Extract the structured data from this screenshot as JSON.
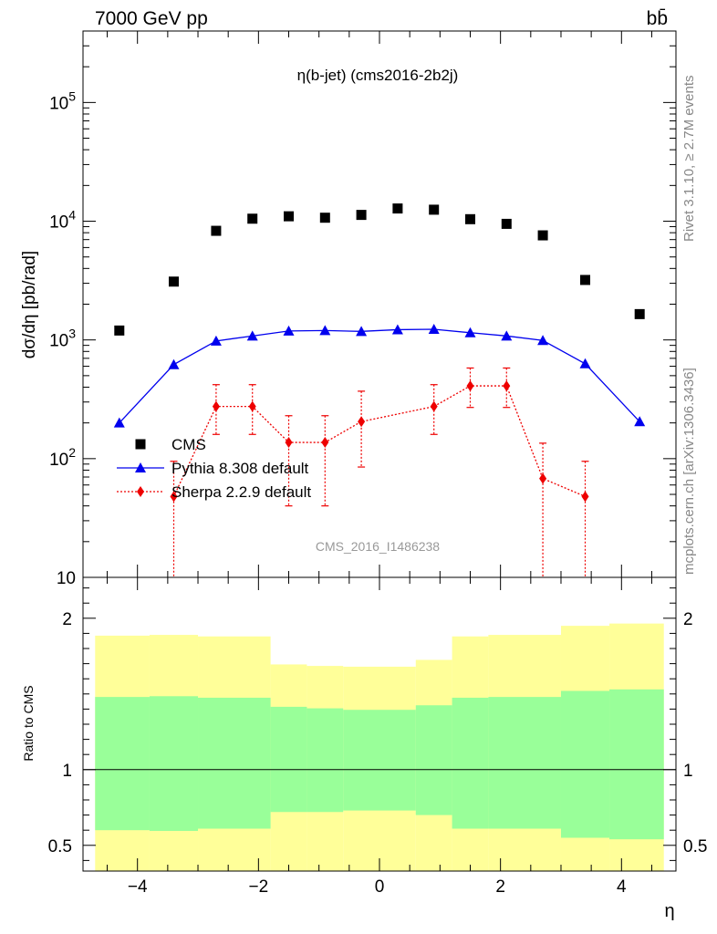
{
  "header": {
    "left": "7000 GeV pp",
    "right": "bb̄",
    "side_top": "Rivet 3.1.10, ≥ 2.7M events",
    "side_bottom": "mcplots.cern.ch [arXiv:1306.3436]"
  },
  "chart_data": [
    {
      "type": "scatter",
      "title": "η(b-jet) (cms2016-2b2j)",
      "ylabel": "dσ/dη [pb/rad]",
      "watermark": "CMS_2016_I1486238",
      "yscale": "log",
      "xlim": [
        -4.9,
        4.9
      ],
      "ylim": [
        10,
        400000
      ],
      "y_ticks": [
        {
          "v": 10,
          "b": "10",
          "e": ""
        },
        {
          "v": 100,
          "b": "10",
          "e": "2"
        },
        {
          "v": 1000,
          "b": "10",
          "e": "3"
        },
        {
          "v": 10000,
          "b": "10",
          "e": "4"
        },
        {
          "v": 100000,
          "b": "10",
          "e": "5"
        }
      ],
      "legend_position": "center-left",
      "series": [
        {
          "name": "CMS",
          "color": "#000000",
          "marker": "square",
          "x": [
            -4.3,
            -3.4,
            -2.7,
            -2.1,
            -1.5,
            -0.9,
            -0.3,
            0.3,
            0.9,
            1.5,
            2.1,
            2.7,
            3.4,
            4.3
          ],
          "y": [
            1200,
            3100,
            8300,
            10500,
            11000,
            10700,
            11300,
            12800,
            12500,
            10400,
            9500,
            7600,
            3200,
            1650
          ]
        },
        {
          "name": "Pythia 8.308 default",
          "color": "#0000ee",
          "marker": "triangle",
          "x": [
            -4.3,
            -3.4,
            -2.7,
            -2.1,
            -1.5,
            -0.9,
            -0.3,
            0.3,
            0.9,
            1.5,
            2.1,
            2.7,
            3.4,
            4.3
          ],
          "y": [
            200,
            620,
            980,
            1080,
            1190,
            1200,
            1180,
            1220,
            1230,
            1150,
            1080,
            990,
            630,
            205
          ]
        },
        {
          "name": "Sherpa 2.2.9 default",
          "color": "#ee0000",
          "marker": "diamond",
          "x": [
            -3.4,
            -2.7,
            -2.1,
            -1.5,
            -0.9,
            -0.3,
            0.9,
            1.5,
            2.1,
            2.7,
            3.4
          ],
          "y": [
            48,
            275,
            275,
            137,
            137,
            205,
            275,
            410,
            410,
            68,
            48
          ],
          "y_low": [
            10,
            160,
            160,
            40,
            40,
            85,
            160,
            270,
            270,
            10,
            10
          ],
          "y_high": [
            95,
            420,
            420,
            230,
            230,
            370,
            420,
            580,
            580,
            135,
            95
          ]
        }
      ]
    },
    {
      "type": "area",
      "ylabel": "Ratio to CMS",
      "xlabel": "η",
      "xlim": [
        -4.9,
        4.9
      ],
      "ylim": [
        0.33,
        2.27
      ],
      "y_ticks": [
        "0.5",
        "1",
        "2"
      ],
      "x_ticks": [
        "−4",
        "−2",
        "0",
        "2",
        "4"
      ],
      "reference_line": 1,
      "bins": [
        -4.7,
        -3.8,
        -3.0,
        -1.8,
        -1.2,
        -0.6,
        0.6,
        1.2,
        1.8,
        3.0,
        3.8,
        4.7
      ],
      "band_green": {
        "color": "#99ff99",
        "low": [
          0.6,
          0.595,
          0.61,
          0.72,
          0.72,
          0.73,
          0.7,
          0.61,
          0.61,
          0.55,
          0.54
        ],
        "high": [
          1.48,
          1.485,
          1.475,
          1.415,
          1.405,
          1.395,
          1.425,
          1.475,
          1.48,
          1.52,
          1.53
        ]
      },
      "band_yellow": {
        "color": "#ffff99",
        "low": [
          0.33,
          0.33,
          0.33,
          0.33,
          0.33,
          0.33,
          0.33,
          0.33,
          0.33,
          0.33,
          0.33
        ],
        "high": [
          1.885,
          1.89,
          1.88,
          1.695,
          1.685,
          1.68,
          1.725,
          1.88,
          1.89,
          1.95,
          1.965
        ]
      }
    }
  ]
}
